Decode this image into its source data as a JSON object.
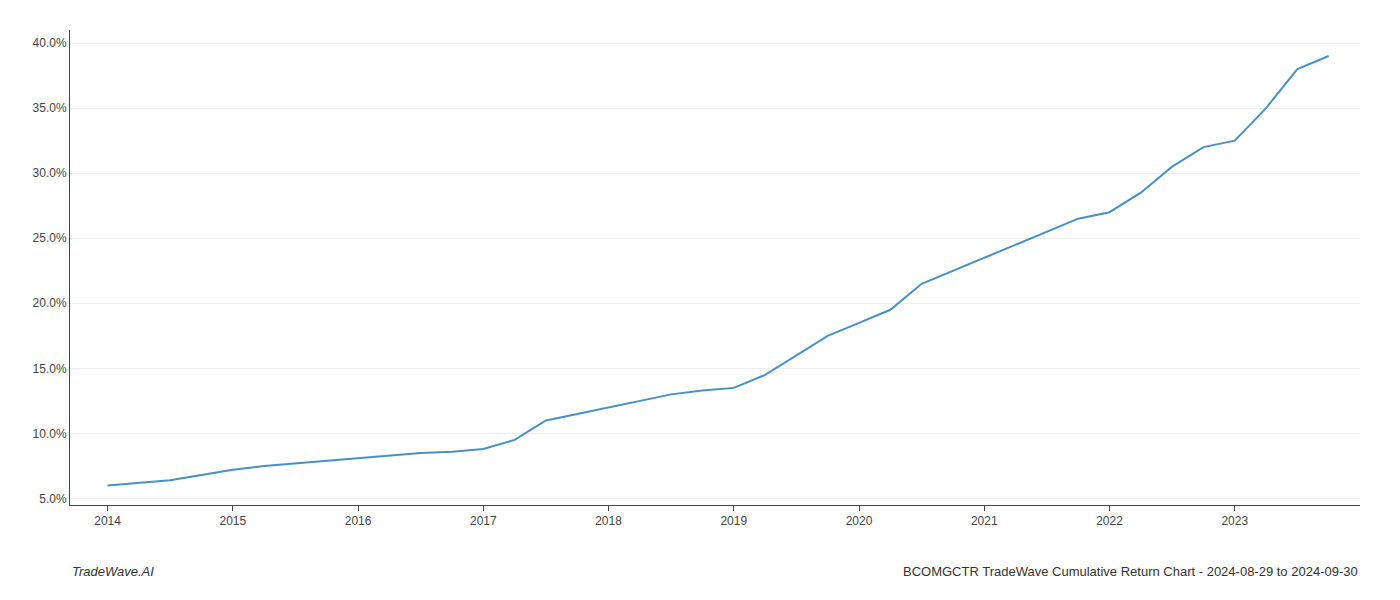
{
  "chart_data": {
    "type": "line",
    "title": "BCOMGCTR TradeWave Cumulative Return Chart - 2024-08-29 to 2024-09-30",
    "annotations": [
      "TradeWave.AI"
    ],
    "x": [
      2014,
      2014.25,
      2014.5,
      2014.75,
      2015,
      2015.25,
      2015.5,
      2015.75,
      2016,
      2016.25,
      2016.5,
      2016.75,
      2017,
      2017.25,
      2017.5,
      2017.75,
      2018,
      2018.25,
      2018.5,
      2018.75,
      2019,
      2019.25,
      2019.5,
      2019.75,
      2020,
      2020.25,
      2020.5,
      2020.75,
      2021,
      2021.25,
      2021.5,
      2021.75,
      2022,
      2022.25,
      2022.5,
      2022.75,
      2023,
      2023.25,
      2023.5,
      2023.75
    ],
    "values": [
      6.0,
      6.2,
      6.4,
      6.8,
      7.2,
      7.5,
      7.7,
      7.9,
      8.1,
      8.3,
      8.5,
      8.6,
      8.8,
      9.5,
      11.0,
      11.5,
      12.0,
      12.5,
      13.0,
      13.3,
      13.5,
      14.5,
      16.0,
      17.5,
      18.5,
      19.5,
      21.5,
      22.5,
      23.5,
      24.5,
      25.5,
      26.5,
      27.0,
      28.5,
      30.5,
      32.0,
      32.5,
      35.0,
      38.0,
      39.0
    ],
    "color": "#4a90c4",
    "xlim": [
      2013.7,
      2024.0
    ],
    "xticks": [
      2014,
      2015,
      2016,
      2017,
      2018,
      2019,
      2020,
      2021,
      2022,
      2023
    ],
    "ylim": [
      4.5,
      41.0
    ],
    "yticks": [
      {
        "value": 5.0,
        "label": "5.0%"
      },
      {
        "value": 10.0,
        "label": "10.0%"
      },
      {
        "value": 15.0,
        "label": "15.0%"
      },
      {
        "value": 20.0,
        "label": "20.0%"
      },
      {
        "value": 25.0,
        "label": "25.0%"
      },
      {
        "value": 30.0,
        "label": "30.0%"
      },
      {
        "value": 35.0,
        "label": "35.0%"
      },
      {
        "value": 40.0,
        "label": "40.0%"
      }
    ],
    "grid": "y"
  }
}
